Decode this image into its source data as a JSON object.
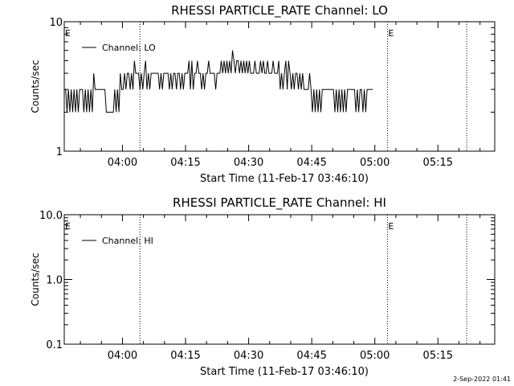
{
  "chart_data": [
    {
      "type": "line",
      "title": "RHESSI PARTICLE_RATE Channel: LO",
      "xlabel": "Start Time (11-Feb-17 03:46:10)",
      "ylabel": "Counts/sec",
      "y_scale": "log",
      "ylim": [
        1,
        10
      ],
      "yticks": [
        {
          "v": 1,
          "label": "1"
        },
        {
          "v": 10,
          "label": "10"
        }
      ],
      "xlim": [
        "03:46:10",
        "05:28:30"
      ],
      "xticks": [
        {
          "t": "04:00",
          "label": "04:00"
        },
        {
          "t": "04:15",
          "label": "04:15"
        },
        {
          "t": "04:30",
          "label": "04:30"
        },
        {
          "t": "04:45",
          "label": "04:45"
        },
        {
          "t": "05:00",
          "label": "05:00"
        },
        {
          "t": "05:15",
          "label": "05:15"
        }
      ],
      "legend": {
        "label": "Channel: LO",
        "position": "top-left"
      },
      "event_markers": [
        {
          "t": "03:46:10",
          "label": "E"
        },
        {
          "t": "05:03:00",
          "label": "E"
        }
      ],
      "dotted_lines": [
        "04:04:10",
        "05:03:00",
        "05:21:50"
      ],
      "series": [
        {
          "name": "Channel: LO",
          "t0": "03:46:10",
          "step_seconds": 20,
          "values": [
            3,
            3,
            2,
            3,
            2,
            3,
            2,
            3,
            2,
            3,
            2,
            3,
            3,
            3,
            2,
            3,
            2,
            3,
            2,
            3,
            2,
            4,
            3,
            3,
            3,
            3,
            3,
            3,
            3,
            3,
            2,
            2,
            2,
            2,
            2,
            2,
            3,
            2,
            3,
            2,
            4,
            3,
            3,
            4,
            3,
            4,
            4,
            3,
            4,
            3,
            5,
            4,
            4,
            4,
            3,
            4,
            3,
            4,
            5,
            3,
            4,
            3,
            4,
            4,
            4,
            4,
            4,
            4,
            3,
            4,
            3,
            4,
            4,
            4,
            4,
            3,
            4,
            3,
            4,
            4,
            3,
            4,
            4,
            3,
            4,
            3,
            4,
            4,
            4,
            5,
            3,
            5,
            3,
            4,
            4,
            5,
            4,
            4,
            3,
            4,
            3,
            4,
            4,
            5,
            4,
            4,
            4,
            4,
            3,
            4,
            4,
            4,
            5,
            4,
            5,
            4,
            5,
            4,
            5,
            4,
            6,
            5,
            4,
            5,
            5,
            4,
            5,
            4,
            5,
            4,
            5,
            4,
            5,
            4,
            4,
            4,
            5,
            4,
            4,
            4,
            5,
            4,
            5,
            4,
            4,
            5,
            4,
            4,
            4,
            5,
            4,
            4,
            4,
            5,
            3,
            4,
            3,
            4,
            5,
            3,
            5,
            4,
            3,
            4,
            3,
            4,
            4,
            3,
            4,
            3,
            4,
            3,
            3,
            3,
            3,
            4,
            3,
            2,
            3,
            2,
            3,
            2,
            3,
            2,
            3,
            3,
            3,
            3,
            3,
            3,
            3,
            3,
            3,
            2,
            3,
            2,
            3,
            2,
            3,
            2,
            3,
            2,
            3,
            3,
            3,
            3,
            3,
            3,
            2,
            3,
            2,
            3,
            3,
            2,
            3,
            2,
            3,
            3,
            3,
            3,
            3
          ]
        }
      ]
    },
    {
      "type": "line",
      "title": "RHESSI PARTICLE_RATE Channel: HI",
      "xlabel": "Start Time (11-Feb-17 03:46:10)",
      "ylabel": "Counts/sec",
      "y_scale": "log",
      "ylim": [
        0.1,
        10
      ],
      "yticks": [
        {
          "v": 0.1,
          "label": "0.1"
        },
        {
          "v": 1,
          "label": "1.0"
        },
        {
          "v": 10,
          "label": "10.0"
        }
      ],
      "xlim": [
        "03:46:10",
        "05:28:30"
      ],
      "xticks": [
        {
          "t": "04:00",
          "label": "04:00"
        },
        {
          "t": "04:15",
          "label": "04:15"
        },
        {
          "t": "04:30",
          "label": "04:30"
        },
        {
          "t": "04:45",
          "label": "04:45"
        },
        {
          "t": "05:00",
          "label": "05:00"
        },
        {
          "t": "05:15",
          "label": "05:15"
        }
      ],
      "legend": {
        "label": "Channel: HI",
        "position": "top-left"
      },
      "event_markers": [
        {
          "t": "03:46:10",
          "label": "E"
        },
        {
          "t": "05:03:00",
          "label": "E"
        }
      ],
      "dotted_lines": [
        "04:04:10",
        "05:03:00",
        "05:21:50"
      ],
      "series": []
    }
  ],
  "footer": {
    "timestamp": "2-Sep-2022 01:41"
  }
}
